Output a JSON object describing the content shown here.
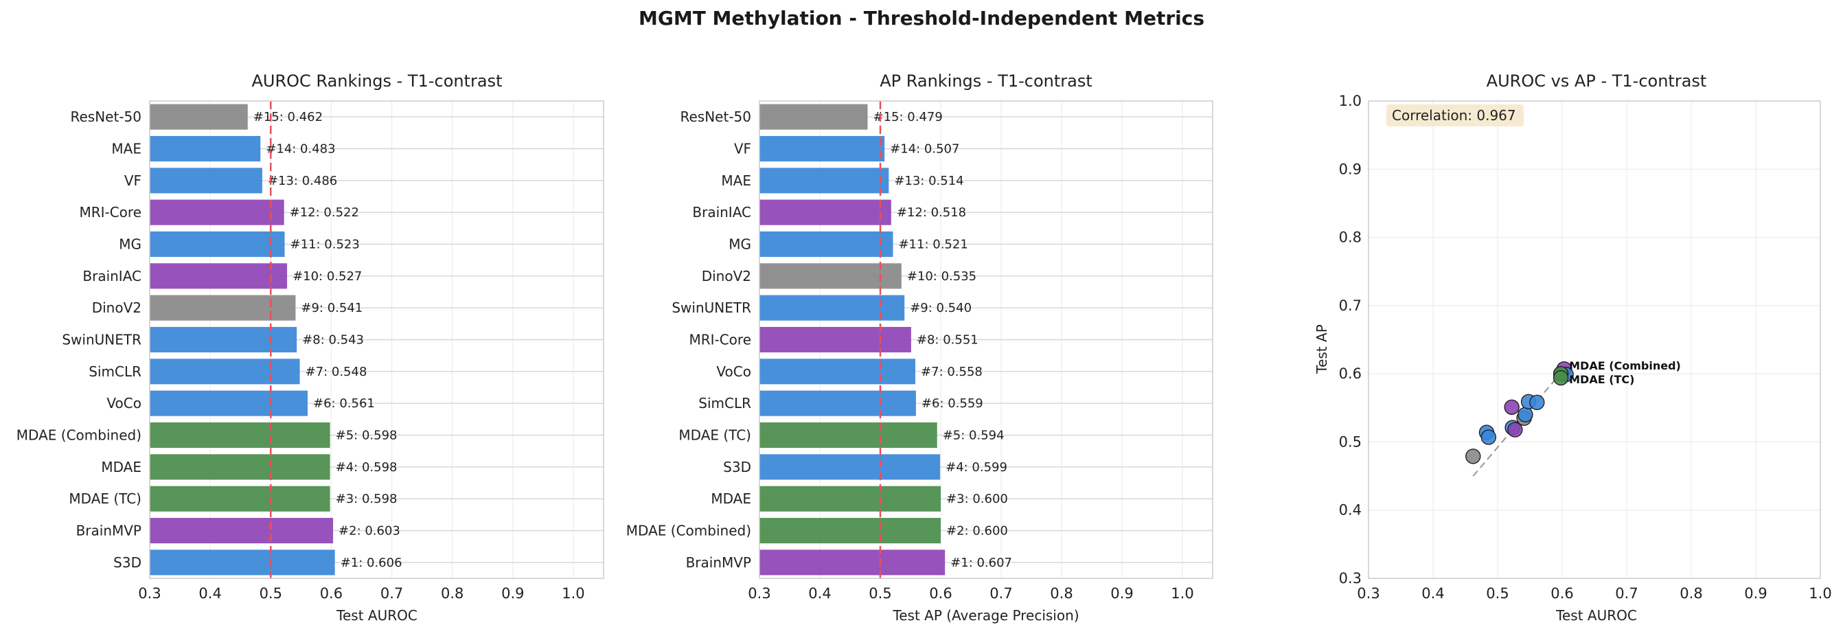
{
  "figure": {
    "title": "MGMT Methylation - Threshold-Independent Metrics"
  },
  "colors": {
    "standard": "#3a87d8",
    "mri": "#8e44b5",
    "natural": "#888888",
    "ours": "#4a8c4a",
    "threshold": "#e8505b"
  },
  "chart_data": [
    {
      "type": "bar",
      "orientation": "horizontal",
      "title": "AUROC Rankings - T1-contrast",
      "xlabel": "Test AUROC",
      "xlim": [
        0.3,
        1.05
      ],
      "xticks": [
        "0.3",
        "0.4",
        "0.5",
        "0.6",
        "0.7",
        "0.8",
        "0.9",
        "1.0"
      ],
      "reference_line": 0.5,
      "grid": true,
      "categories": [
        "ResNet-50",
        "MAE",
        "VF",
        "MRI-Core",
        "MG",
        "BrainIAC",
        "DinoV2",
        "SwinUNETR",
        "SimCLR",
        "VoCo",
        "MDAE (Combined)",
        "MDAE",
        "MDAE (TC)",
        "BrainMVP",
        "S3D"
      ],
      "values": [
        0.462,
        0.483,
        0.486,
        0.522,
        0.523,
        0.527,
        0.541,
        0.543,
        0.548,
        0.561,
        0.598,
        0.598,
        0.598,
        0.603,
        0.606
      ],
      "groups": [
        "natural",
        "standard",
        "standard",
        "mri",
        "standard",
        "mri",
        "natural",
        "standard",
        "standard",
        "standard",
        "ours",
        "ours",
        "ours",
        "mri",
        "standard"
      ],
      "labels": [
        "#15: 0.462",
        "#14: 0.483",
        "#13: 0.486",
        "#12: 0.522",
        "#11: 0.523",
        "#10: 0.527",
        "#9: 0.541",
        "#8: 0.543",
        "#7: 0.548",
        "#6: 0.561",
        "#5: 0.598",
        "#4: 0.598",
        "#3: 0.598",
        "#2: 0.603",
        "#1: 0.606"
      ]
    },
    {
      "type": "bar",
      "orientation": "horizontal",
      "title": "AP Rankings - T1-contrast",
      "xlabel": "Test AP (Average Precision)",
      "xlim": [
        0.3,
        1.05
      ],
      "xticks": [
        "0.3",
        "0.4",
        "0.5",
        "0.6",
        "0.7",
        "0.8",
        "0.9",
        "1.0"
      ],
      "reference_line": 0.5,
      "grid": true,
      "categories": [
        "ResNet-50",
        "VF",
        "MAE",
        "BrainIAC",
        "MG",
        "DinoV2",
        "SwinUNETR",
        "MRI-Core",
        "VoCo",
        "SimCLR",
        "MDAE (TC)",
        "S3D",
        "MDAE",
        "MDAE (Combined)",
        "BrainMVP"
      ],
      "values": [
        0.479,
        0.507,
        0.514,
        0.518,
        0.521,
        0.535,
        0.54,
        0.551,
        0.558,
        0.559,
        0.594,
        0.599,
        0.6,
        0.6,
        0.607
      ],
      "groups": [
        "natural",
        "standard",
        "standard",
        "mri",
        "standard",
        "natural",
        "standard",
        "mri",
        "standard",
        "standard",
        "ours",
        "standard",
        "ours",
        "ours",
        "mri"
      ],
      "labels": [
        "#15: 0.479",
        "#14: 0.507",
        "#13: 0.514",
        "#12: 0.518",
        "#11: 0.521",
        "#10: 0.535",
        "#9: 0.540",
        "#8: 0.551",
        "#7: 0.558",
        "#6: 0.559",
        "#5: 0.594",
        "#4: 0.599",
        "#3: 0.600",
        "#2: 0.600",
        "#1: 0.607"
      ]
    },
    {
      "type": "scatter",
      "title": "AUROC vs AP - T1-contrast",
      "xlabel": "Test AUROC",
      "ylabel": "Test AP",
      "xlim": [
        0.3,
        1.0
      ],
      "ylim": [
        0.3,
        1.0
      ],
      "xticks": [
        "0.3",
        "0.4",
        "0.5",
        "0.6",
        "0.7",
        "0.8",
        "0.9",
        "1.0"
      ],
      "yticks": [
        "0.3",
        "0.4",
        "0.5",
        "0.6",
        "0.7",
        "0.8",
        "0.9",
        "1.0"
      ],
      "grid": true,
      "annotation": "Correlation: 0.967",
      "fit_line": {
        "x": [
          0.462,
          0.606
        ],
        "y": [
          0.462,
          0.606
        ]
      },
      "points": [
        {
          "x": 0.462,
          "y": 0.479,
          "group": "natural"
        },
        {
          "x": 0.483,
          "y": 0.514,
          "group": "standard"
        },
        {
          "x": 0.486,
          "y": 0.507,
          "group": "standard"
        },
        {
          "x": 0.522,
          "y": 0.551,
          "group": "mri"
        },
        {
          "x": 0.523,
          "y": 0.521,
          "group": "standard"
        },
        {
          "x": 0.527,
          "y": 0.518,
          "group": "mri"
        },
        {
          "x": 0.541,
          "y": 0.535,
          "group": "natural"
        },
        {
          "x": 0.543,
          "y": 0.54,
          "group": "standard"
        },
        {
          "x": 0.548,
          "y": 0.559,
          "group": "standard"
        },
        {
          "x": 0.561,
          "y": 0.558,
          "group": "standard"
        },
        {
          "x": 0.603,
          "y": 0.607,
          "group": "mri"
        },
        {
          "x": 0.606,
          "y": 0.599,
          "group": "standard"
        },
        {
          "x": 0.598,
          "y": 0.6,
          "group": "ours"
        },
        {
          "x": 0.598,
          "y": 0.6,
          "group": "ours"
        },
        {
          "x": 0.598,
          "y": 0.594,
          "group": "ours"
        }
      ],
      "point_labels": [
        {
          "text": "MDAE (Combined)",
          "x": 0.598,
          "y": 0.6
        },
        {
          "text": "MDAE (TC)",
          "x": 0.598,
          "y": 0.594
        }
      ]
    }
  ]
}
